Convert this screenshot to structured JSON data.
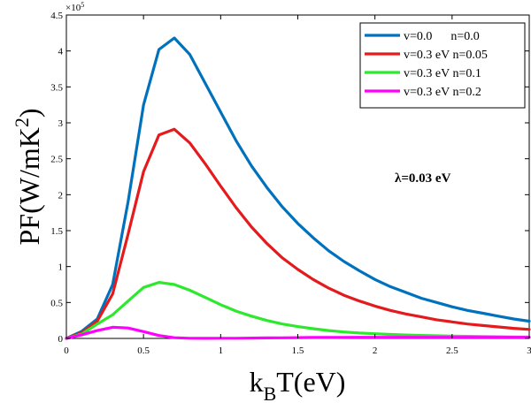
{
  "chart_data": {
    "type": "line",
    "title": "",
    "xlabel": {
      "main": "k",
      "sub": "B",
      "rest": "T(eV)"
    },
    "ylabel": {
      "main": "PF(W/mK",
      "sup": "2",
      "rest": ")"
    },
    "xlim": [
      0,
      3
    ],
    "ylim": [
      0,
      450000
    ],
    "y_exponent_label": "×10",
    "y_exponent_power": "5",
    "x_ticks": [
      0,
      0.5,
      1,
      1.5,
      2,
      2.5,
      3
    ],
    "x_tick_labels": [
      "0",
      "0.5",
      "1",
      "1.5",
      "2",
      "2.5",
      "3"
    ],
    "y_ticks": [
      0,
      50000,
      100000,
      150000,
      200000,
      250000,
      300000,
      350000,
      400000,
      450000
    ],
    "y_tick_labels": [
      "0",
      "0.5",
      "1",
      "1.5",
      "2",
      "2.5",
      "3",
      "3.5",
      "4",
      "4.5"
    ],
    "grid": false,
    "legend_position": "top-right",
    "annotation": "λ=0.03 eV",
    "x": [
      0,
      0.1,
      0.2,
      0.3,
      0.4,
      0.5,
      0.6,
      0.7,
      0.8,
      0.9,
      1.0,
      1.1,
      1.2,
      1.3,
      1.4,
      1.5,
      1.6,
      1.7,
      1.8,
      1.9,
      2.0,
      2.1,
      2.2,
      2.3,
      2.4,
      2.5,
      2.6,
      2.7,
      2.8,
      2.9,
      3.0
    ],
    "series": [
      {
        "name": "v=0.0      n=0.0",
        "color": "#0072BD",
        "values": [
          0,
          10000,
          27000,
          75000,
          190000,
          325000,
          402000,
          418000,
          395000,
          355000,
          315000,
          275000,
          240000,
          210000,
          183000,
          160000,
          140000,
          122000,
          107000,
          94000,
          82000,
          72000,
          64000,
          56000,
          50000,
          44000,
          39000,
          35000,
          31000,
          27000,
          24000
        ]
      },
      {
        "name": "v=0.3 eV n=0.05",
        "color": "#E41A1C",
        "values": [
          0,
          8000,
          24000,
          62000,
          145000,
          232000,
          283000,
          291000,
          272000,
          243000,
          212000,
          182000,
          155000,
          132000,
          112000,
          96000,
          82000,
          70000,
          60000,
          52000,
          45000,
          39000,
          34000,
          30000,
          26000,
          23000,
          20000,
          18000,
          16000,
          14000,
          12500
        ]
      },
      {
        "name": "v=0.3 eV n=0.1",
        "color": "#2EE82E",
        "values": [
          0,
          6000,
          20000,
          33000,
          52000,
          71000,
          78000,
          75000,
          67000,
          57000,
          47000,
          38000,
          31000,
          25000,
          20000,
          16500,
          13500,
          11000,
          9000,
          7500,
          6500,
          5500,
          4800,
          4200,
          3700,
          3200,
          2900,
          2600,
          2300,
          2100,
          1900
        ]
      },
      {
        "name": "v=0.3 eV n=0.2",
        "color": "#FF00FF",
        "values": [
          0,
          5000,
          11000,
          15500,
          14500,
          9500,
          4000,
          1000,
          200,
          100,
          200,
          300,
          500,
          700,
          900,
          1100,
          1300,
          1400,
          1500,
          1550,
          1600,
          1620,
          1640,
          1650,
          1650,
          1650,
          1640,
          1630,
          1620,
          1610,
          1600
        ]
      }
    ]
  }
}
